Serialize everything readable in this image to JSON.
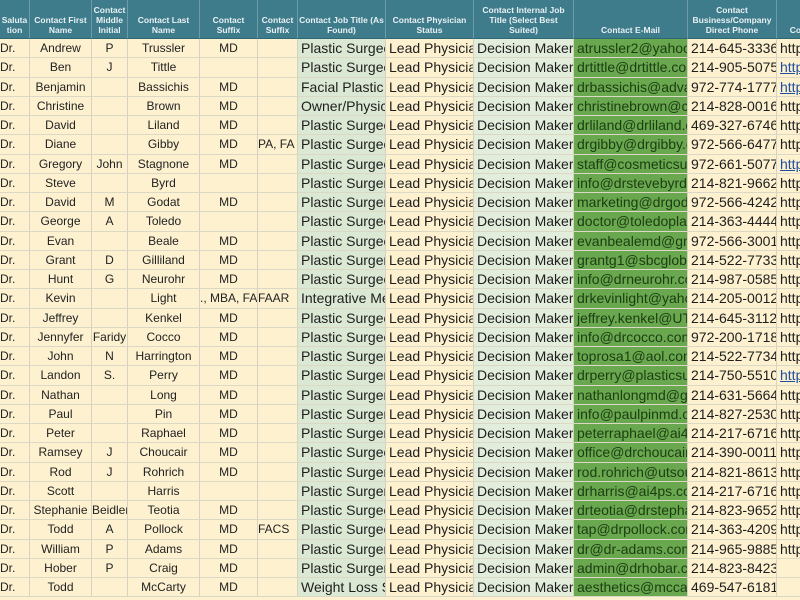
{
  "colors": {
    "header_bg": "#3e7b8b",
    "row_bg": "#fdf1d0",
    "job_title_bg": "#dbe8d4",
    "internal_title_bg": "#e3eddc",
    "email_bg": "#6aa84f",
    "link": "#1f4fa0"
  },
  "headers": [
    "Saluta tion",
    "Contact First Name",
    "Contact Middle Initial",
    "Contact Last Name",
    "Contact Suffix",
    "Contact Suffix",
    "Contact Job Title (As Found)",
    "Contact Physician Status",
    "Contact Internal Job Title (Select Best Suited)",
    "Contact E-Mail",
    "Contact Business/Company Direct Phone",
    "Con"
  ],
  "rows": [
    [
      "Dr.",
      "Andrew",
      "P",
      "Trussler",
      "MD",
      "",
      "Plastic Surgeon",
      "Lead Physician",
      "Decision Maker",
      "atrussler2@yahoo",
      "214-645-3336",
      "http",
      false
    ],
    [
      "Dr.",
      "Ben",
      "J",
      "Tittle",
      "",
      "",
      "Plastic Surgeon",
      "Lead Physician",
      "Decision Maker",
      "drtittle@drtittle.com",
      "214-905-5075",
      "http",
      true
    ],
    [
      "Dr.",
      "Benjamin",
      "",
      "Bassichis",
      "MD",
      "",
      "Facial Plastic",
      "Lead Physician",
      "Decision Maker",
      "drbassichis@adva",
      "972-774-1777",
      "http",
      true
    ],
    [
      "Dr.",
      "Christine",
      "",
      "Brown",
      "MD",
      "",
      "Owner/Physician",
      "Lead Physician",
      "Decision Maker",
      "christinebrown@cl",
      "214-828-0016",
      "http",
      false
    ],
    [
      "Dr.",
      "David",
      "",
      "Liland",
      "MD",
      "",
      "Plastic Surgeon",
      "Lead Physician",
      "Decision Maker",
      "drliland@drliland.c",
      "469-327-6746",
      "http",
      false
    ],
    [
      "Dr.",
      "Diane",
      "",
      "Gibby",
      "MD",
      "PA, FA",
      "Plastic Surgeon",
      "Lead Physician",
      "Decision Maker",
      "drgibby@drgibby.c",
      "972-566-6477",
      "http",
      false
    ],
    [
      "Dr.",
      "Gregory",
      "John",
      "Stagnone",
      "MD",
      "",
      "Plastic Surgeon",
      "Lead Physician",
      "Decision Maker",
      "staff@cosmeticsur",
      "972-661-5077",
      "http",
      true
    ],
    [
      "Dr.",
      "Steve",
      "",
      "Byrd",
      "",
      "",
      "Plastic Surgery",
      "Lead Physician",
      "Decision Maker",
      "info@drstevebyrd.",
      "214-821-9662",
      "http",
      false
    ],
    [
      "Dr.",
      "David",
      "M",
      "Godat",
      "MD",
      "",
      "Plastic Surgery",
      "Lead Physician",
      "Decision Maker",
      "marketing@drgoda",
      "972-566-4242",
      "http",
      false
    ],
    [
      "Dr.",
      "George",
      "A",
      "Toledo",
      "",
      "",
      "Plastic Surgeon",
      "Lead Physician",
      "Decision Maker",
      "doctor@toledoplas",
      "214-363-4444",
      "http",
      false
    ],
    [
      "Dr.",
      "Evan",
      "",
      "Beale",
      "MD",
      "",
      "Plastic Surgeon",
      "Lead Physician",
      "Decision Maker",
      "evanbealemd@gm",
      "972-566-3001",
      "http",
      false
    ],
    [
      "Dr.",
      "Grant",
      "D",
      "Gilliland",
      "MD",
      "",
      "Plastic Surgery",
      "Lead Physician",
      "Decision Maker",
      "grantg1@sbcgloba",
      "214-522-7733",
      "http",
      false
    ],
    [
      "Dr.",
      "Hunt",
      "G",
      "Neurohr",
      "MD",
      "",
      "Plastic Surgeon",
      "Lead Physician",
      "Decision Maker",
      "info@drneurohr.co",
      "214-987-0585",
      "http",
      false
    ],
    [
      "Dr.",
      "Kevin",
      "",
      "Light",
      "., MBA, FA",
      "FAAR",
      "Integrative Me",
      "Lead Physician",
      "Decision Maker",
      "drkevinlight@yaho",
      "214-205-0012",
      "http",
      false
    ],
    [
      "Dr.",
      "Jeffrey",
      "",
      "Kenkel",
      "MD",
      "",
      "Plastic Surgeon",
      "Lead Physician",
      "Decision Maker",
      "jeffrey.kenkel@UT",
      "214-645-3112",
      "http",
      false
    ],
    [
      "Dr.",
      "Jennyfer",
      "Faridy",
      "Cocco",
      "MD",
      "",
      "Plastic Surgeon",
      "Lead Physician",
      "Decision Maker",
      "info@drcocco.com",
      "972-200-1718",
      "http",
      false
    ],
    [
      "Dr.",
      "John",
      "N",
      "Harrington",
      "MD",
      "",
      "Plastic Surgery",
      "Lead Physician",
      "Decision Maker",
      "toprosa1@aol.com",
      "214-522-7734",
      "http",
      false
    ],
    [
      "Dr.",
      "Landon",
      "S.",
      "Perry",
      "MD",
      "",
      "Plastic Surgery",
      "Lead Physician",
      "Decision Maker",
      "drperry@plasticsu",
      "214-750-5510",
      "http",
      true
    ],
    [
      "Dr.",
      "Nathan",
      "",
      "Long",
      "MD",
      "",
      "Plastic Surgery",
      "Lead Physician",
      "Decision Maker",
      "nathanlongmd@gr",
      "214-631-5664",
      "http",
      false
    ],
    [
      "Dr.",
      "Paul",
      "",
      "Pin",
      "MD",
      "",
      "Plastic Surgery",
      "Lead Physician",
      "Decision Maker",
      "info@paulpinmd.c",
      "214-827-2530",
      "http",
      false
    ],
    [
      "Dr.",
      "Peter",
      "",
      "Raphael",
      "MD",
      "",
      "Plastic Surgery",
      "Lead Physician",
      "Decision Maker",
      "peterraphael@ai4p",
      "214-217-6716",
      "http",
      false
    ],
    [
      "Dr.",
      "Ramsey",
      "J",
      "Choucair",
      "MD",
      "",
      "Plastic Surgeon",
      "Lead Physician",
      "Decision Maker",
      "office@drchoucair",
      "214-390-0011",
      "http",
      false
    ],
    [
      "Dr.",
      "Rod",
      "J",
      "Rohrich",
      "MD",
      "",
      "Plastic Surgery",
      "Lead Physician",
      "Decision Maker",
      "rod.rohrich@utsou",
      "214-821-8613",
      "http",
      false
    ],
    [
      "Dr.",
      "Scott",
      "",
      "Harris",
      "",
      "",
      "Plastic Surgery",
      "Lead Physician",
      "Decision Maker",
      "drharris@ai4ps.co",
      "214-217-6716",
      "http",
      false
    ],
    [
      "Dr.",
      "Stephanie",
      "Beidler",
      "Teotia",
      "MD",
      "",
      "Plastic Surgeon",
      "Lead Physician",
      "Decision Maker",
      "drteotia@drstepha",
      "214-823-9652",
      "http",
      false
    ],
    [
      "Dr.",
      "Todd",
      "A",
      "Pollock",
      "MD",
      "FACS",
      "Plastic Surgeon",
      "Lead Physician",
      "Decision Maker",
      "tap@drpollock.com",
      "214-363-4209",
      "http",
      false
    ],
    [
      "Dr.",
      "William",
      "P",
      "Adams",
      "MD",
      "",
      "Plastic Surgery",
      "Lead Physician",
      "Decision Maker",
      "dr@dr-adams.com",
      "214-965-9885",
      "http",
      false
    ],
    [
      "Dr.",
      "Hober",
      "P",
      "Craig",
      "MD",
      "",
      "Plastic Surgery",
      "Lead Physician",
      "Decision Maker",
      "admin@drhobar.co",
      "214-823-8423",
      "",
      false
    ],
    [
      "Dr.",
      "Todd",
      "",
      "McCarty",
      "MD",
      "",
      "Weight Loss Surgeon",
      "Lead Physician",
      "Decision Maker",
      "aesthetics@mccar",
      "469-547-6181",
      "",
      false
    ]
  ]
}
